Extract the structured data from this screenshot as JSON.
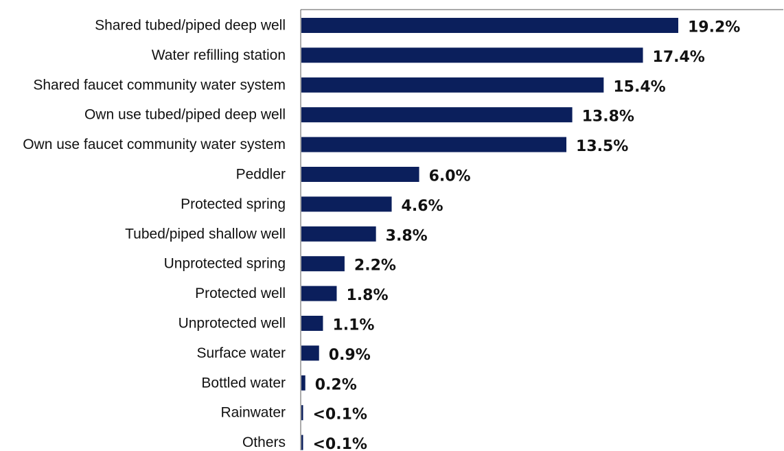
{
  "chart_data": {
    "type": "bar",
    "orientation": "horizontal",
    "title": "",
    "xlabel": "",
    "ylabel": "",
    "grid": false,
    "legend": "none",
    "xlim": [
      0,
      19.2
    ],
    "colors": {
      "bar": "#0b1f5c",
      "axis": "#555555",
      "text": "#111111",
      "background": "#ffffff"
    },
    "categories": [
      "Shared tubed/piped deep well",
      "Water refilling station",
      "Shared faucet community water system",
      "Own use tubed/piped deep well",
      "Own use faucet community water system",
      "Peddler",
      "Protected spring",
      "Tubed/piped shallow well",
      "Unprotected spring",
      "Protected well",
      "Unprotected well",
      "Surface water",
      "Bottled water",
      "Rainwater",
      "Others"
    ],
    "values": [
      19.2,
      17.4,
      15.4,
      13.8,
      13.5,
      6.0,
      4.6,
      3.8,
      2.2,
      1.8,
      1.1,
      0.9,
      0.2,
      0.05,
      0.05
    ],
    "data_labels": [
      "19.2%",
      "17.4%",
      "15.4%",
      "13.8%",
      "13.5%",
      "6.0%",
      "4.6%",
      "3.8%",
      "2.2%",
      "1.8%",
      "1.1%",
      "0.9%",
      "0.2%",
      "<0.1%",
      "<0.1%"
    ]
  }
}
